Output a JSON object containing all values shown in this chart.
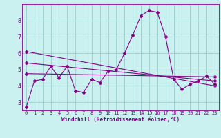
{
  "xlabel": "Windchill (Refroidissement éolien,°C)",
  "background_color": "#caf0f0",
  "plot_bg_color": "#caf0f0",
  "grid_color": "#99cccc",
  "line_color": "#880088",
  "spine_color": "#880088",
  "xlim": [
    -0.5,
    23.5
  ],
  "ylim": [
    2.5,
    9.0
  ],
  "yticks": [
    3,
    4,
    5,
    6,
    7,
    8
  ],
  "xticks": [
    0,
    1,
    2,
    3,
    4,
    5,
    6,
    7,
    8,
    9,
    10,
    11,
    12,
    13,
    14,
    15,
    16,
    17,
    18,
    19,
    20,
    21,
    22,
    23
  ],
  "series1": [
    2.7,
    4.3,
    4.4,
    5.2,
    4.5,
    5.2,
    3.7,
    3.6,
    4.4,
    4.2,
    4.9,
    5.0,
    6.0,
    7.1,
    8.3,
    8.6,
    8.5,
    7.0,
    4.4,
    3.8,
    4.1,
    4.3,
    4.6,
    4.1
  ],
  "series2_x": [
    0,
    23
  ],
  "series2_y": [
    6.1,
    4.0
  ],
  "series3_x": [
    0,
    23
  ],
  "series3_y": [
    5.4,
    4.3
  ],
  "series4_x": [
    0,
    23
  ],
  "series4_y": [
    4.75,
    4.55
  ]
}
